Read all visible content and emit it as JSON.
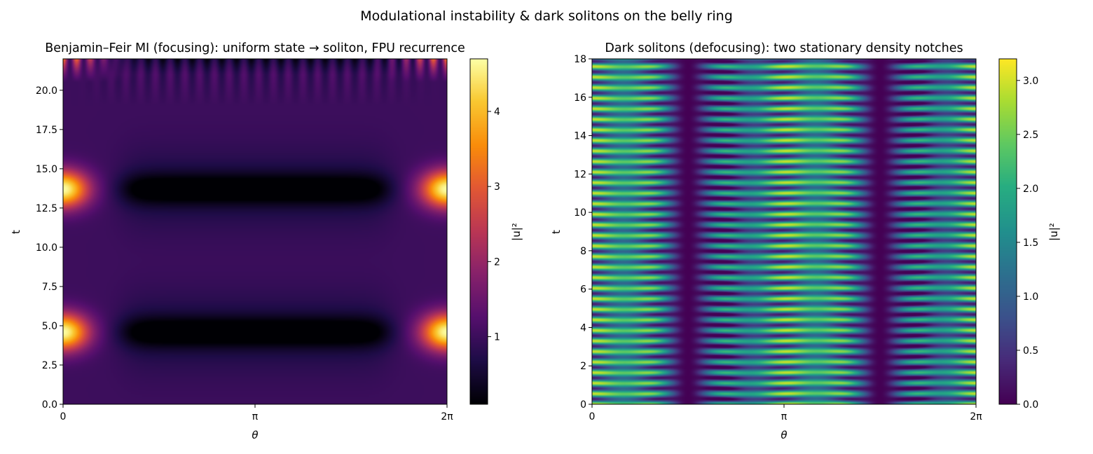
{
  "figure": {
    "suptitle": "Modulational instability & dark solitons on the belly ring"
  },
  "chart_data": [
    {
      "type": "heatmap",
      "title": "Benjamin–Feir MI (focusing): uniform state → soliton, FPU recurrence",
      "xlabel": "θ",
      "ylabel": "t",
      "xlim": [
        0,
        6.283
      ],
      "ylim": [
        0,
        22
      ],
      "x_ticks": [
        0,
        3.1416,
        6.2832
      ],
      "x_tick_labels": [
        "0",
        "π",
        "2π"
      ],
      "y_ticks": [
        0,
        2.5,
        5,
        7.5,
        10,
        12.5,
        15,
        17.5,
        20
      ],
      "y_tick_labels": [
        "0.0",
        "2.5",
        "5.0",
        "7.5",
        "10.0",
        "12.5",
        "15.0",
        "17.5",
        "20.0"
      ],
      "colormap": "inferno",
      "value_range": [
        0.1,
        4.7
      ],
      "colorbar": {
        "label": "|u|²",
        "ticks": [
          1,
          2,
          3,
          4
        ],
        "tick_labels": [
          "1",
          "2",
          "3",
          "4"
        ]
      },
      "features": {
        "background_level": 1.0,
        "peak_level": 4.7,
        "peak_theta": [
          0,
          6.2832
        ],
        "recurrence_times": [
          4.6,
          13.7
        ],
        "dark_band_level": 0.1,
        "dark_band_theta_range": [
          1.0,
          5.3
        ],
        "top_modulation_start_t": 19
      }
    },
    {
      "type": "heatmap",
      "title": "Dark solitons (defocusing): two stationary density notches",
      "xlabel": "θ",
      "ylabel": "t",
      "xlim": [
        0,
        6.283
      ],
      "ylim": [
        0,
        18
      ],
      "x_ticks": [
        0,
        3.1416,
        6.2832
      ],
      "x_tick_labels": [
        "0",
        "π",
        "2π"
      ],
      "y_ticks": [
        0,
        2,
        4,
        6,
        8,
        10,
        12,
        14,
        16,
        18
      ],
      "y_tick_labels": [
        "0",
        "2",
        "4",
        "6",
        "8",
        "10",
        "12",
        "14",
        "16",
        "18"
      ],
      "colormap": "viridis",
      "value_range": [
        0,
        3.2
      ],
      "colorbar": {
        "label": "|u|²",
        "ticks": [
          0,
          0.5,
          1,
          1.5,
          2,
          2.5,
          3
        ],
        "tick_labels": [
          "0.0",
          "0.5",
          "1.0",
          "1.5",
          "2.0",
          "2.5",
          "3.0"
        ]
      },
      "features": {
        "notch_theta": [
          1.5708,
          4.7124
        ],
        "notch_level": 0.0,
        "band_period_t": 0.55,
        "background_mean": 1.4
      }
    }
  ]
}
